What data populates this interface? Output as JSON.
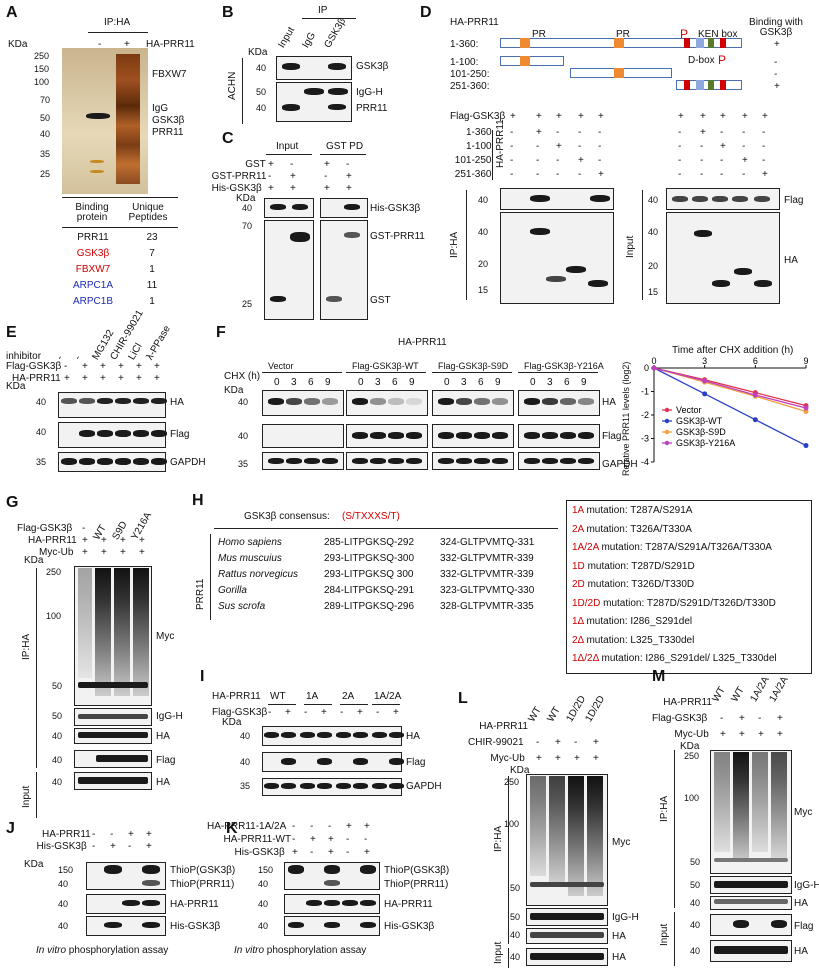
{
  "panel_letters": [
    "A",
    "B",
    "C",
    "D",
    "E",
    "F",
    "G",
    "H",
    "I",
    "J",
    "K",
    "L",
    "M"
  ],
  "A": {
    "header": "IP:HA",
    "lanes": [
      "-",
      "+"
    ],
    "row_label": "HA-PRR11",
    "kda_label": "KDa",
    "markers": [
      "250",
      "150",
      "100",
      "70",
      "50",
      "40",
      "35",
      "25"
    ],
    "right_labels": [
      "FBXW7",
      "IgG",
      "GSK3β",
      "PRR11"
    ],
    "table": {
      "headers": [
        "Binding protein",
        "Unique Peptides"
      ],
      "rows": [
        {
          "protein": "PRR11",
          "peptides": "23",
          "color": "#111111"
        },
        {
          "protein": "GSK3β",
          "peptides": "7",
          "color": "#d00000"
        },
        {
          "protein": "FBXW7",
          "peptides": "1",
          "color": "#d00000"
        },
        {
          "protein": "ARPC1A",
          "peptides": "11",
          "color": "#1e2bb0"
        },
        {
          "protein": "ARPC1B",
          "peptides": "1",
          "color": "#1e2bb0"
        }
      ]
    }
  },
  "B": {
    "ip_label": "IP",
    "lanes": [
      "Input",
      "IgG",
      "GSK3β"
    ],
    "cell_label": "ACHN",
    "kda_label": "KDa",
    "markers": [
      "40",
      "50",
      "40"
    ],
    "right_labels": [
      "GSK3β",
      "IgG-H",
      "PRR11"
    ]
  },
  "C": {
    "headers": [
      "Input",
      "GST PD"
    ],
    "rows": [
      {
        "label": "GST",
        "marks": [
          "+",
          "-",
          "+",
          "-"
        ]
      },
      {
        "label": "GST-PRR11",
        "marks": [
          "-",
          "+",
          "-",
          "+"
        ]
      },
      {
        "label": "His-GSK3β",
        "marks": [
          "+",
          "+",
          "+",
          "+"
        ]
      }
    ],
    "kda_label": "KDa",
    "markers": [
      "40",
      "70",
      "25"
    ],
    "right_labels": [
      "His-GSK3β",
      "GST-PRR11",
      "GST"
    ]
  },
  "D": {
    "construct_title": "HA-PRR11",
    "binding_title": "Binding with GSK3β",
    "constructs": [
      {
        "label": "1-360:",
        "binding": "+"
      },
      {
        "label": "1-100:",
        "binding": "-"
      },
      {
        "label": "101-250:",
        "binding": "-"
      },
      {
        "label": "251-360:",
        "binding": "+"
      }
    ],
    "domain_labels": [
      "PR",
      "PR",
      "P",
      "KEN box",
      "D-box",
      "P"
    ],
    "flag_row": {
      "label": "Flag-GSK3β",
      "marks": [
        "+",
        "+",
        "+",
        "+",
        "+",
        "+",
        "+",
        "+",
        "+",
        "+"
      ]
    },
    "group_label": "HA-PRR11",
    "construct_rows": [
      {
        "label": "1-360",
        "marks": [
          "-",
          "+",
          "-",
          "-",
          "-",
          "-",
          "+",
          "-",
          "-",
          "-"
        ]
      },
      {
        "label": "1-100",
        "marks": [
          "-",
          "-",
          "+",
          "-",
          "-",
          "-",
          "-",
          "+",
          "-",
          "-"
        ]
      },
      {
        "label": "101-250",
        "marks": [
          "-",
          "-",
          "-",
          "+",
          "-",
          "-",
          "-",
          "-",
          "+",
          "-"
        ]
      },
      {
        "label": "251-360",
        "marks": [
          "-",
          "-",
          "-",
          "-",
          "+",
          "-",
          "-",
          "-",
          "-",
          "+"
        ]
      }
    ],
    "ip_label": "IP:HA",
    "input_label": "Input",
    "markers_flag": [
      "40"
    ],
    "markers_ha": [
      "40",
      "20",
      "15"
    ],
    "right_labels": [
      "Flag",
      "HA"
    ]
  },
  "E": {
    "inhibitor_label": "inhibitor",
    "inhibitors": [
      "-",
      "-",
      "MG132",
      "CHIR-99021",
      "LiCl",
      "λ-PPase"
    ],
    "rows": [
      {
        "label": "Flag-GSK3β",
        "marks": [
          "-",
          "+",
          "+",
          "+",
          "+",
          "+"
        ]
      },
      {
        "label": "HA-PRR11",
        "marks": [
          "+",
          "+",
          "+",
          "+",
          "+",
          "+"
        ]
      }
    ],
    "kda_label": "KDa",
    "markers": [
      "40",
      "40",
      "35"
    ],
    "right_labels": [
      "HA",
      "Flag",
      "GAPDH"
    ]
  },
  "F": {
    "title": "HA-PRR11",
    "groups": [
      "Vector",
      "Flag-GSK3β-WT",
      "Flag-GSK3β-S9D",
      "Flag-GSK3β-Y216A"
    ],
    "chx_label": "CHX (h)",
    "timepoints": [
      "0",
      "3",
      "6",
      "9"
    ],
    "kda_label": "KDa",
    "markers": [
      "40",
      "40",
      "35"
    ],
    "right_labels": [
      "HA",
      "Flag",
      "GAPDH"
    ]
  },
  "chart_data": {
    "type": "line",
    "title": "Time after CHX addition (h)",
    "x": [
      0,
      3,
      6,
      9
    ],
    "ylabel": "Relative PRR11 levels (log2)",
    "xlim": [
      0,
      9
    ],
    "ylim": [
      -4,
      0
    ],
    "yticks": [
      "0",
      "-1",
      "-2",
      "-3",
      "-4"
    ],
    "xticks": [
      "0",
      "3",
      "6",
      "9"
    ],
    "series": [
      {
        "name": "Vector",
        "color": "#e0334e",
        "values": [
          0,
          -0.5,
          -1.05,
          -1.6
        ]
      },
      {
        "name": "GSK3β-WT",
        "color": "#2b3fc4",
        "values": [
          0,
          -1.1,
          -2.2,
          -3.3
        ]
      },
      {
        "name": "GSK3β-S9D",
        "color": "#f0a040",
        "values": [
          0,
          -0.6,
          -1.2,
          -1.85
        ]
      },
      {
        "name": "GSK3β-Y216A",
        "color": "#c040c0",
        "values": [
          0,
          -0.55,
          -1.15,
          -1.7
        ]
      }
    ],
    "legend_position": "bottom-left"
  },
  "G": {
    "rows": [
      {
        "label": "Flag-GSK3β",
        "marks": [
          "-",
          "WT",
          "S9D",
          "Y216A"
        ]
      },
      {
        "label": "HA-PRR11",
        "marks": [
          "+",
          "+",
          "+",
          "+"
        ]
      },
      {
        "label": "Myc-Ub",
        "marks": [
          "+",
          "+",
          "+",
          "+"
        ]
      }
    ],
    "kda_label": "KDa",
    "ip_label": "IP:HA",
    "input_label": "Input",
    "markers": [
      "250",
      "100",
      "50",
      "50",
      "40",
      "40",
      "40"
    ],
    "right_labels": [
      "Myc",
      "IgG-H",
      "HA",
      "Flag",
      "HA"
    ]
  },
  "H": {
    "consensus_label": "GSK3β consensus:",
    "consensus": "(S/TXXXS/T)",
    "group_label": "PRR11",
    "species": [
      {
        "name": "Homo sapiens",
        "s1": "285-LITPGKSQ-292",
        "s2": "324-GLTPVMTQ-331"
      },
      {
        "name": "Mus muscuius",
        "s1": "293-LITPGKSQ-300",
        "s2": "332-GLTPVMTR-339"
      },
      {
        "name": "Rattus norvegicus",
        "s1": "293-LITPGKSQ 300",
        "s2": "332-GLTPVMTR-339"
      },
      {
        "name": "Gorilla",
        "s1": "284-LITPGKSQ-291",
        "s2": "323-GLTPVMTQ-330"
      },
      {
        "name": "Sus scrofa",
        "s1": "289-LITPGKSQ-296",
        "s2": "328-GLTPVMTR-335"
      }
    ],
    "mutations": [
      {
        "code": "1A",
        "text": " mutation: T287A/S291A"
      },
      {
        "code": "2A",
        "text": " mutation: T326A/T330A"
      },
      {
        "code": "1A/2A",
        "text": " mutation: T287A/S291A/T326A/T330A"
      },
      {
        "code": "1D",
        "text": " mutation: T287D/S291D"
      },
      {
        "code": "2D",
        "text": " mutation: T326D/T330D"
      },
      {
        "code": "1D/2D",
        "text": " mutation: T287D/S291D/T326D/T330D"
      },
      {
        "code": "1Δ",
        "text": " mutation: I286_S291del"
      },
      {
        "code": "2Δ",
        "text": " mutation: L325_T330del"
      },
      {
        "code": "1Δ/2Δ",
        "text": "  mutation: I286_S291del/ L325_T330del"
      }
    ]
  },
  "I": {
    "construct_label": "HA-PRR11",
    "groups": [
      "WT",
      "1A",
      "2A",
      "1A/2A"
    ],
    "flag_row": {
      "label": "Flag-GSK3β",
      "marks": [
        "-",
        "+",
        "-",
        "+",
        "-",
        "+",
        "-",
        "+"
      ]
    },
    "kda_label": "KDa",
    "markers": [
      "40",
      "40",
      "35"
    ],
    "right_labels": [
      "HA",
      "Flag",
      "GAPDH"
    ]
  },
  "J": {
    "rows": [
      {
        "label": "HA-PRR11",
        "marks": [
          "-",
          "-",
          "+",
          "+"
        ]
      },
      {
        "label": "His-GSK3β",
        "marks": [
          "-",
          "+",
          "-",
          "+"
        ]
      }
    ],
    "kda_label": "KDa",
    "markers": [
      "150",
      "40",
      "40",
      "40"
    ],
    "right_labels": [
      "ThioP(GSK3β)",
      "ThioP(PRR11)",
      "HA-PRR11",
      "His-GSK3β"
    ],
    "caption_italic": "In vitro",
    "caption": " phosphorylation assay"
  },
  "K": {
    "rows": [
      {
        "label": "HA-PRR11-1A/2A",
        "marks": [
          "-",
          "-",
          "-",
          "+",
          "+"
        ]
      },
      {
        "label": "HA-PRR11-WT",
        "marks": [
          "-",
          "+",
          "+",
          "-",
          "-"
        ]
      },
      {
        "label": "His-GSK3β",
        "marks": [
          "+",
          "-",
          "+",
          "-",
          "+"
        ]
      }
    ],
    "markers": [
      "150",
      "40",
      "40",
      "40"
    ],
    "right_labels": [
      "ThioP(GSK3β)",
      "ThioP(PRR11)",
      "HA-PRR11",
      "His-GSK3β"
    ],
    "caption_italic": "In vitro",
    "caption": " phosphorylation assay"
  },
  "L": {
    "lanes": [
      "WT",
      "WT",
      "1D/2D",
      "1D/2D"
    ],
    "rows": [
      {
        "label": "HA-PRR11",
        "marks": []
      },
      {
        "label": "CHIR-99021",
        "marks": [
          "-",
          "+",
          "-",
          "+"
        ]
      },
      {
        "label": "Myc-Ub",
        "marks": [
          "+",
          "+",
          "+",
          "+"
        ]
      }
    ],
    "kda_label": "KDa",
    "ip_label": "IP:HA",
    "input_label": "Input",
    "markers": [
      "250",
      "100",
      "50",
      "50",
      "40",
      "40"
    ],
    "right_labels": [
      "Myc",
      "IgG-H",
      "HA",
      "HA"
    ]
  },
  "M": {
    "lanes": [
      "WT",
      "WT",
      "1A/2A",
      "1A/2A"
    ],
    "rows": [
      {
        "label": "HA-PRR11",
        "marks": []
      },
      {
        "label": "Flag-GSK3β",
        "marks": [
          "-",
          "+",
          "-",
          "+"
        ]
      },
      {
        "label": "Myc-Ub",
        "marks": [
          "+",
          "+",
          "+",
          "+"
        ]
      }
    ],
    "kda_label": "KDa",
    "ip_label": "IP:HA",
    "input_label": "Input",
    "markers": [
      "250",
      "100",
      "50",
      "50",
      "40",
      "40",
      "40"
    ],
    "right_labels": [
      "Myc",
      "IgG-H",
      "HA",
      "Flag",
      "HA"
    ]
  }
}
